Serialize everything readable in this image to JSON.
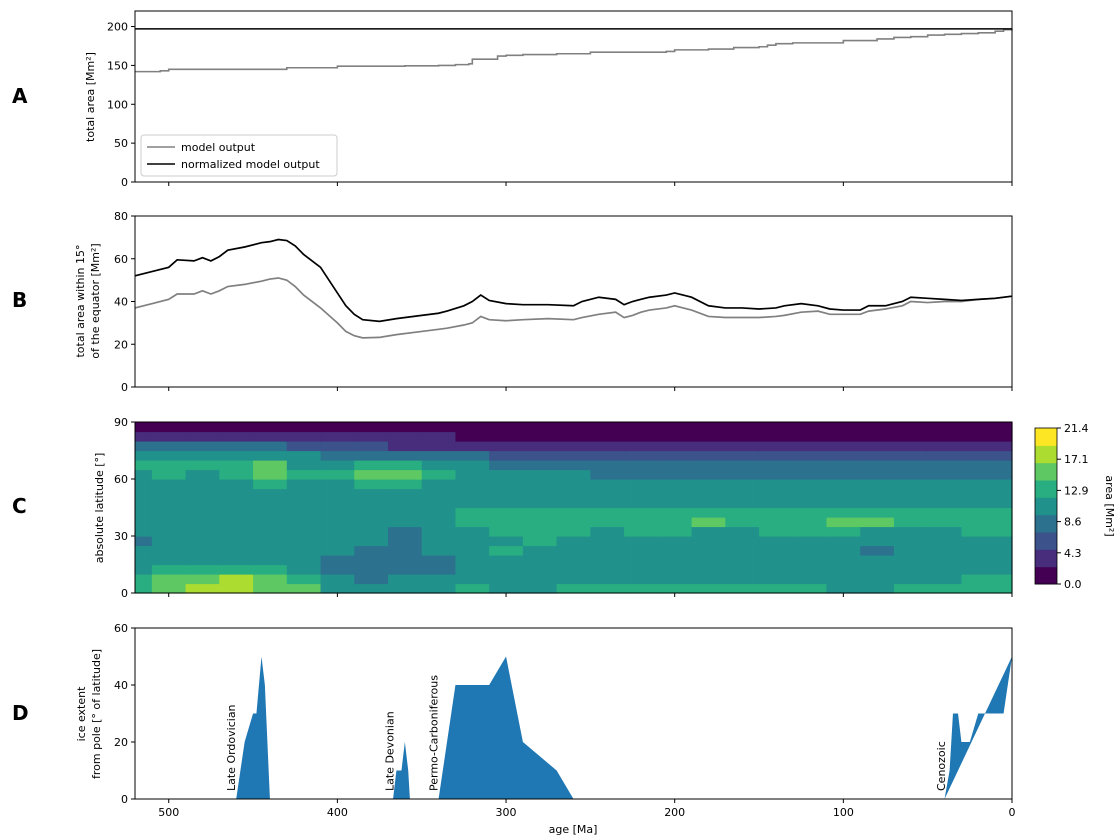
{
  "figure": {
    "panel_letters": [
      "A",
      "B",
      "C",
      "D"
    ],
    "shared_xlabel": "age [Ma]"
  },
  "chart_data": [
    {
      "panel": "A",
      "type": "line",
      "xlabel": "",
      "ylabel": "total area [Mm$^2$]",
      "ylabel_text": "total area [Mm²]",
      "xlim": [
        520,
        0
      ],
      "ylim": [
        0,
        220
      ],
      "yticks": [
        0,
        50,
        100,
        150,
        200
      ],
      "xticks": [
        500,
        400,
        300,
        200,
        100,
        0
      ],
      "show_xtick_labels": false,
      "legend": {
        "placement": "lower-left",
        "entries": [
          "model output",
          "normalized model output"
        ]
      },
      "series": [
        {
          "name": "model output",
          "color": "#808080",
          "step": true,
          "x": [
            520,
            505,
            500,
            450,
            430,
            400,
            380,
            360,
            340,
            330,
            322,
            320,
            310,
            305,
            300,
            290,
            270,
            250,
            230,
            205,
            200,
            180,
            165,
            150,
            145,
            140,
            130,
            100,
            80,
            70,
            60,
            50,
            40,
            30,
            20,
            10,
            5,
            0
          ],
          "y": [
            142,
            143,
            145,
            145,
            147,
            149,
            149,
            149.5,
            150,
            151,
            152,
            158,
            158,
            162,
            163,
            164,
            165,
            167,
            167,
            168,
            170,
            171,
            173,
            174,
            176,
            178,
            179,
            182,
            184,
            186,
            187,
            189,
            190,
            191,
            192,
            194,
            196,
            197
          ]
        },
        {
          "name": "normalized model output",
          "color": "#000000",
          "x": [
            520,
            0
          ],
          "y": [
            197,
            197
          ]
        }
      ]
    },
    {
      "panel": "B",
      "type": "line",
      "ylabel_lines": [
        "total area within 15°",
        "of the equator [Mm²]"
      ],
      "xlim": [
        520,
        0
      ],
      "ylim": [
        0,
        80
      ],
      "yticks": [
        0,
        20,
        40,
        60,
        80
      ],
      "xticks": [
        500,
        400,
        300,
        200,
        100,
        0
      ],
      "show_xtick_labels": false,
      "series": [
        {
          "color": "#000000",
          "x": [
            520,
            510,
            500,
            495,
            485,
            480,
            475,
            470,
            465,
            455,
            445,
            440,
            435,
            430,
            425,
            420,
            410,
            400,
            395,
            390,
            385,
            375,
            365,
            350,
            340,
            335,
            325,
            320,
            315,
            310,
            300,
            290,
            275,
            260,
            255,
            245,
            235,
            230,
            225,
            220,
            215,
            205,
            200,
            195,
            190,
            180,
            170,
            160,
            150,
            140,
            135,
            125,
            115,
            108,
            100,
            90,
            85,
            75,
            65,
            60,
            50,
            40,
            30,
            20,
            10,
            0
          ],
          "y": [
            52,
            54,
            56,
            59.5,
            59,
            60.5,
            59,
            61,
            64,
            65.5,
            67.5,
            68,
            69,
            68.5,
            66,
            62,
            56,
            44,
            38,
            34,
            31.5,
            30.7,
            32,
            33.5,
            34.5,
            35.5,
            38,
            40,
            43,
            40.5,
            39,
            38.5,
            38.5,
            38,
            40,
            42,
            41,
            38.5,
            40,
            41,
            42,
            43,
            44,
            43,
            42,
            38,
            37,
            37,
            36.5,
            37,
            38,
            39,
            38,
            36.5,
            36,
            36,
            38,
            38,
            40,
            42,
            41.5,
            41,
            40.5,
            41,
            41.5,
            42.5
          ]
        },
        {
          "color": "#808080",
          "x": [
            520,
            510,
            500,
            495,
            485,
            480,
            475,
            470,
            465,
            455,
            445,
            440,
            435,
            430,
            425,
            420,
            410,
            400,
            395,
            390,
            385,
            375,
            365,
            350,
            340,
            335,
            325,
            320,
            315,
            310,
            300,
            290,
            275,
            260,
            255,
            245,
            235,
            230,
            225,
            220,
            215,
            205,
            200,
            195,
            190,
            180,
            170,
            160,
            150,
            140,
            135,
            125,
            115,
            108,
            100,
            90,
            85,
            75,
            65,
            60,
            50,
            40,
            30,
            20,
            10,
            0
          ],
          "y": [
            37,
            39,
            41,
            43.5,
            43.5,
            45,
            43.5,
            45,
            47,
            48,
            49.5,
            50.5,
            51,
            50,
            47,
            43,
            37,
            30,
            26,
            24,
            23,
            23.2,
            24.5,
            26,
            27,
            27.5,
            29,
            30,
            33,
            31.5,
            31,
            31.5,
            32,
            31.5,
            32.5,
            34,
            35,
            32.5,
            33.5,
            35,
            36,
            37,
            38,
            37,
            36,
            33,
            32.5,
            32.5,
            32.5,
            33,
            33.5,
            35,
            35.5,
            34,
            34,
            34,
            35.5,
            36.5,
            38,
            40,
            39.5,
            40,
            40,
            41,
            41.5,
            42.5
          ]
        }
      ]
    },
    {
      "panel": "C",
      "type": "heatmap",
      "ylabel": "absolute latitude [°]",
      "xlim": [
        520,
        0
      ],
      "ylim": [
        0,
        90
      ],
      "yticks": [
        0,
        30,
        60,
        90
      ],
      "xticks": [
        500,
        400,
        300,
        200,
        100,
        0
      ],
      "show_xtick_labels": false,
      "colorbar": {
        "label": "area [Mm²]",
        "ticks": [
          "0.0",
          "4.3",
          "8.6",
          "12.9",
          "17.1",
          "21.4"
        ],
        "range": [
          0,
          21.4
        ],
        "colors": [
          "#440154",
          "#472d7b",
          "#3b528b",
          "#2c728e",
          "#21918c",
          "#28ae80",
          "#5ec962",
          "#addc30",
          "#fde725"
        ]
      },
      "latitudes": [
        2.5,
        7.5,
        12.5,
        17.5,
        22.5,
        27.5,
        32.5,
        37.5,
        42.5,
        47.5,
        52.5,
        57.5,
        62.5,
        67.5,
        72.5,
        77.5,
        82.5,
        87.5
      ],
      "ages": [
        520,
        500,
        480,
        460,
        440,
        420,
        400,
        380,
        360,
        340,
        320,
        300,
        280,
        260,
        240,
        220,
        200,
        180,
        160,
        140,
        120,
        100,
        80,
        60,
        40,
        20,
        0
      ],
      "values": [
        [
          14,
          16,
          18,
          20,
          17,
          15,
          12,
          10,
          11,
          12,
          13,
          12,
          12,
          13,
          13,
          13,
          13,
          13,
          13,
          13,
          13,
          12,
          12,
          13,
          13,
          13,
          13
        ],
        [
          13,
          15,
          17,
          18,
          16,
          14,
          11,
          9,
          10,
          11,
          12,
          12,
          12,
          12,
          12,
          12,
          12,
          12,
          12,
          12,
          12,
          12,
          12,
          12,
          12,
          13,
          13
        ],
        [
          12,
          13,
          14,
          14,
          13,
          12,
          8,
          7,
          8,
          9,
          10,
          11,
          11,
          11,
          11,
          11,
          11,
          11,
          11,
          10,
          10,
          10,
          10,
          11,
          11,
          12,
          12
        ],
        [
          11,
          12,
          12,
          12,
          12,
          11,
          9,
          7,
          7,
          9,
          11,
          12,
          12,
          11,
          10,
          10,
          10,
          10,
          10,
          10,
          10,
          10,
          10,
          10,
          11,
          11,
          12
        ],
        [
          10,
          11,
          11,
          11,
          11,
          10,
          10,
          9,
          9,
          10,
          12,
          13,
          12,
          11,
          10,
          11,
          11,
          10,
          10,
          11,
          11,
          11,
          9,
          10,
          10,
          11,
          12
        ],
        [
          9,
          10,
          11,
          11,
          10,
          10,
          11,
          10,
          8,
          10,
          12,
          12,
          13,
          12,
          11,
          12,
          12,
          11,
          11,
          12,
          12,
          12,
          11,
          11,
          11,
          12,
          12
        ],
        [
          10,
          11,
          11,
          10,
          10,
          11,
          12,
          11,
          9,
          10,
          12,
          13,
          13,
          13,
          12,
          13,
          13,
          12,
          12,
          13,
          13,
          13,
          12,
          12,
          12,
          13,
          13
        ],
        [
          11,
          11,
          12,
          11,
          11,
          12,
          12,
          11,
          11,
          11,
          13,
          13,
          13,
          13,
          13,
          14,
          14,
          15,
          14,
          13,
          14,
          15,
          15,
          13,
          13,
          13,
          13
        ],
        [
          12,
          12,
          12,
          12,
          12,
          12,
          12,
          12,
          12,
          12,
          13,
          13,
          13,
          13,
          13,
          13,
          13,
          13,
          13,
          13,
          13,
          13,
          13,
          13,
          13,
          13,
          13
        ],
        [
          12,
          12,
          12,
          11,
          12,
          11,
          12,
          12,
          12,
          12,
          12,
          12,
          12,
          12,
          12,
          12,
          12,
          12,
          12,
          12,
          12,
          12,
          12,
          12,
          12,
          12,
          12
        ],
        [
          11,
          11,
          11,
          12,
          12,
          11,
          11,
          12,
          12,
          11,
          11,
          11,
          11,
          11,
          11,
          11,
          11,
          11,
          11,
          11,
          11,
          11,
          11,
          11,
          11,
          11,
          11
        ],
        [
          11,
          12,
          11,
          12,
          13,
          12,
          11,
          13,
          13,
          12,
          11,
          11,
          11,
          10,
          10,
          10,
          10,
          10,
          10,
          10,
          10,
          10,
          10,
          10,
          10,
          10,
          10
        ],
        [
          12,
          13,
          12,
          13,
          16,
          13,
          13,
          16,
          16,
          13,
          12,
          11,
          10,
          10,
          9,
          9,
          9,
          9,
          9,
          9,
          9,
          9,
          9,
          9,
          9,
          9,
          9
        ],
        [
          13,
          14,
          14,
          14,
          15,
          12,
          12,
          14,
          14,
          12,
          11,
          9,
          8,
          8,
          7,
          7,
          7,
          7,
          7,
          7,
          7,
          7,
          7,
          7,
          7,
          7,
          7
        ],
        [
          11,
          12,
          12,
          11,
          11,
          10,
          9,
          9,
          9,
          8,
          7,
          6,
          5,
          5,
          5,
          5,
          5,
          5,
          5,
          5,
          5,
          5,
          5,
          5,
          5,
          5,
          5
        ],
        [
          7,
          8,
          8,
          7,
          7,
          6,
          5,
          5,
          4,
          4,
          4,
          3,
          3,
          3,
          3,
          3,
          3,
          3,
          3,
          3,
          3,
          3,
          3,
          3,
          3,
          3,
          3
        ],
        [
          2,
          2,
          2,
          2,
          2,
          2,
          2,
          2,
          2,
          2,
          1,
          1,
          1,
          1,
          1,
          1,
          1,
          1,
          1,
          1,
          1,
          1,
          1,
          1,
          1,
          1,
          1
        ],
        [
          0,
          0,
          0,
          0,
          0,
          0,
          0,
          0,
          0,
          0,
          0,
          0,
          0,
          0,
          0,
          0,
          0,
          0,
          0,
          0,
          0,
          0,
          0,
          0,
          0,
          0,
          0
        ]
      ]
    },
    {
      "panel": "D",
      "type": "area",
      "ylabel_lines": [
        "ice extent",
        "from pole [° of latitude]"
      ],
      "xlabel": "age [Ma]",
      "xlim": [
        520,
        0
      ],
      "ylim": [
        0,
        60
      ],
      "yticks": [
        0,
        20,
        40,
        60
      ],
      "xticks": [
        500,
        400,
        300,
        200,
        100,
        0
      ],
      "xtick_labels": [
        "500",
        "400",
        "300",
        "200",
        "100",
        "0"
      ],
      "color": "#1f77b4",
      "polygons": [
        {
          "x": [
            460,
            455,
            450,
            448,
            445,
            443,
            440,
            460
          ],
          "y": [
            0,
            20,
            30,
            30,
            50,
            40,
            0,
            0
          ]
        },
        {
          "x": [
            367,
            365,
            362,
            360,
            358,
            357,
            367
          ],
          "y": [
            0,
            10,
            10,
            20,
            10,
            0,
            0
          ]
        },
        {
          "x": [
            340,
            330,
            310,
            300,
            290,
            270,
            260,
            340
          ],
          "y": [
            0,
            40,
            40,
            50,
            20,
            10,
            0,
            0
          ]
        },
        {
          "x": [
            40,
            37,
            35,
            32,
            30,
            27,
            25,
            20,
            15,
            10,
            5,
            0,
            40
          ],
          "y": [
            0,
            10,
            30,
            30,
            20,
            20,
            20,
            30,
            30,
            30,
            30,
            50,
            0
          ]
        }
      ],
      "annotations": [
        {
          "text": "Late Ordovician",
          "x": 463
        },
        {
          "text": "Late Devonian",
          "x": 369
        },
        {
          "text": "Permo-Carboniferous",
          "x": 343
        },
        {
          "text": "Cenozoic",
          "x": 42
        }
      ]
    }
  ]
}
